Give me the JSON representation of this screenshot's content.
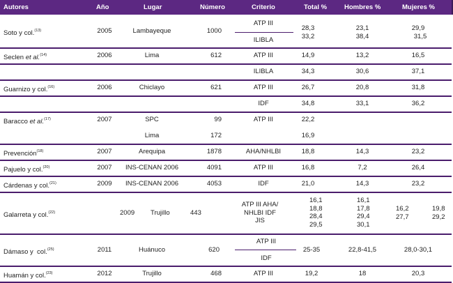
{
  "header": {
    "autores": "Autores",
    "ano": "Año",
    "lugar": "Lugar",
    "numero": "Número",
    "criterio": "Criterio",
    "total": "Total %",
    "hombres": "Hombres %",
    "mujeres": "Mujeres %"
  },
  "rows": {
    "soto": {
      "autor": "Soto y col.",
      "ref": "(13)",
      "ano": "2005",
      "lugar": "Lambayeque",
      "numero": "1000",
      "criterio1": "ATP III",
      "criterio2": "ILIBLA",
      "total": "28,3\n33,2",
      "hombres": "23,1\n38,4",
      "mujeres1": "29,9",
      "mujeres2": "31,5"
    },
    "seclen": {
      "autor": "Seclen ",
      "autor_it": "et al.",
      "ref": "(14)",
      "ano": "2006",
      "lugar": "Lima",
      "numero": "612",
      "criterio": "ATP III",
      "total": "14,9",
      "hombres": "13,2",
      "mujeres": "16,5"
    },
    "seclen2": {
      "criterio": "ILIBLA",
      "total": "34,3",
      "hombres": "30,6",
      "mujeres": "37,1"
    },
    "guarnizo": {
      "autor": "Guarnizo y col.",
      "ref": "(16)",
      "ano": "2006",
      "lugar": "Chiclayo",
      "numero": "621",
      "criterio": "ATP III",
      "total": "26,7",
      "hombres": "20,8",
      "mujeres": "31,8"
    },
    "guarnizo2": {
      "criterio": "IDF",
      "total": "34,8",
      "hombres": "33,1",
      "mujeres": "36,2"
    },
    "baracco": {
      "autor": "Baracco ",
      "autor_it": "et al.",
      "ref": "(17)",
      "ano": "2007",
      "lugar": "SPC",
      "numero": "99",
      "criterio": "ATP III",
      "total": "22,2"
    },
    "baracco2": {
      "lugar": "Lima",
      "numero": "172",
      "total": "16,9"
    },
    "prevencion": {
      "autor": "Prevención",
      "ref": "(18)",
      "ano": "2007",
      "lugar": "Arequipa",
      "numero": "1878",
      "criterio": "AHA/NHLBI",
      "total": "18,8",
      "hombres": "14,3",
      "mujeres": "23,2"
    },
    "pajuelo": {
      "autor": "Pajuelo y col.",
      "ref": "(20)",
      "ano": "2007",
      "lugar": "INS-CENAN 2006",
      "numero": "4091",
      "criterio": "ATP III",
      "total": "16,8",
      "hombres": "7,2",
      "mujeres": "26,4"
    },
    "cardenas": {
      "autor": "Cárdenas y col.",
      "ref": "(21)",
      "ano": "2009",
      "lugar": "INS-CENAN 2006",
      "numero": "4053",
      "criterio": "IDF",
      "total": "21,0",
      "hombres": "14,3",
      "mujeres": "23,2"
    },
    "galarreta": {
      "autor": "Galarreta y col.",
      "ref": "(22)",
      "ano": "2009",
      "lugar": "Trujillo",
      "numero": "443",
      "criterio": "ATP III  AHA/\nNHLBI IDF\nJIS",
      "total": "16,1\n18,8\n28,4\n29,5",
      "hombres": "16,1\n17,8\n29,4\n30,1",
      "mujeres_a": "16,2\n27,7",
      "mujeres_b": "19,8\n29,2"
    },
    "damaso": {
      "autor": "Dámaso y  col.",
      "ref": "(25)",
      "ano": "2011",
      "lugar": "Huánuco",
      "numero": "620",
      "criterio1": "ATP III",
      "criterio2": "IDF",
      "total": "25-35",
      "hombres": "22,8-41,5",
      "mujeres": "28,0-30,1"
    },
    "huaman": {
      "autor": "Huamán y col.",
      "ref": "(23)",
      "ano": "2012",
      "lugar": "Trujillo",
      "numero": "468",
      "criterio": "ATP III",
      "total": "19,2",
      "hombres": "18",
      "mujeres": "20,3"
    }
  },
  "colors": {
    "header_bg": "#5c2882",
    "rule": "#4a1c6c"
  }
}
